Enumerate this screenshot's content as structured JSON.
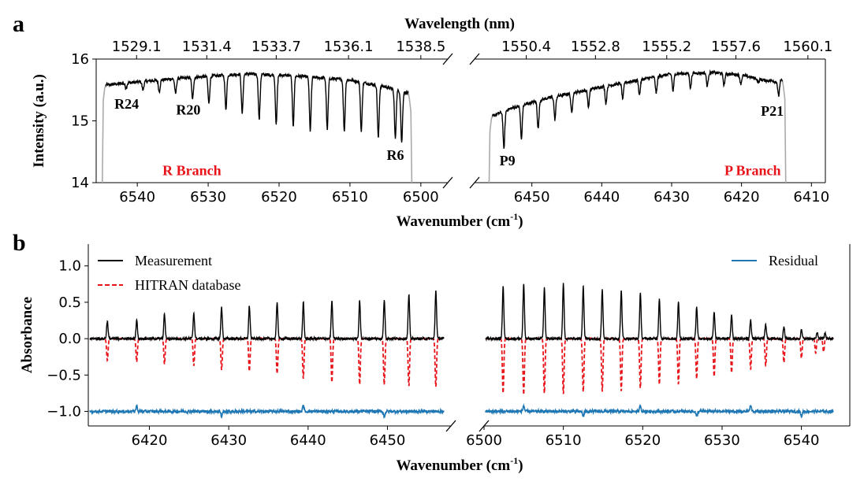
{
  "chart_data": [
    {
      "panel": "a",
      "type": "line",
      "xlabel": "Wavenumber (cm⁻¹)",
      "xlabel_main": "Wavenumber (cm",
      "xlabel_sup": "-1",
      "xlabel_tail": ")",
      "ylabel": "Intensity (a.u.)",
      "top_xlabel": "Wavelength (nm)",
      "ylim": [
        14,
        16
      ],
      "yticks": [
        "14",
        "15",
        "16"
      ],
      "broken_x_axis": true,
      "x_reversed": true,
      "segments": [
        {
          "xlim": [
            6545.8,
            6496.2
          ],
          "xticks": [
            6540,
            6530,
            6520,
            6510,
            6500
          ],
          "xtick_labels": [
            "6540",
            "6530",
            "6520",
            "6510",
            "6500"
          ],
          "top_ticks": [
            {
              "x": 6540.1,
              "label": "1529.1"
            },
            {
              "x": 6530.2,
              "label": "1531.4"
            },
            {
              "x": 6520.4,
              "label": "1533.7"
            },
            {
              "x": 6510.2,
              "label": "1536.1"
            },
            {
              "x": 6500.0,
              "label": "1538.5"
            }
          ],
          "edge_rise": 6544.8,
          "edge_fall": 6501.4,
          "baseline": [
            [
              6544.5,
              15.58
            ],
            [
              6535,
              15.68
            ],
            [
              6525,
              15.76
            ],
            [
              6518,
              15.73
            ],
            [
              6510,
              15.66
            ],
            [
              6505,
              15.55
            ],
            [
              6502,
              15.45
            ]
          ],
          "dips": [
            [
              6543.8,
              15.58
            ],
            [
              6541.6,
              15.53
            ],
            [
              6539.2,
              15.5
            ],
            [
              6536.9,
              15.47
            ],
            [
              6534.6,
              15.44
            ],
            [
              6532.2,
              15.35
            ],
            [
              6529.9,
              15.28
            ],
            [
              6527.5,
              15.19
            ],
            [
              6525.2,
              15.12
            ],
            [
              6522.8,
              15.02
            ],
            [
              6520.4,
              14.94
            ],
            [
              6518.0,
              14.92
            ],
            [
              6515.6,
              14.84
            ],
            [
              6513.2,
              14.86
            ],
            [
              6510.8,
              14.83
            ],
            [
              6508.4,
              14.83
            ],
            [
              6506.0,
              14.73
            ],
            [
              6503.6,
              14.72
            ],
            [
              6502.7,
              14.65
            ]
          ]
        },
        {
          "xlim": [
            6458.2,
            6408.0
          ],
          "xticks": [
            6450,
            6440,
            6430,
            6420,
            6410
          ],
          "xtick_labels": [
            "6450",
            "6440",
            "6430",
            "6420",
            "6410"
          ],
          "top_ticks": [
            {
              "x": 6450.8,
              "label": "1550.4"
            },
            {
              "x": 6440.9,
              "label": "1552.8"
            },
            {
              "x": 6430.7,
              "label": "1555.2"
            },
            {
              "x": 6420.8,
              "label": "1557.6"
            },
            {
              "x": 6410.5,
              "label": "1560.1"
            }
          ],
          "edge_rise": 6456.0,
          "edge_fall": 6413.8,
          "baseline": [
            [
              6455.6,
              15.08
            ],
            [
              6453,
              15.2
            ],
            [
              6448,
              15.36
            ],
            [
              6440,
              15.55
            ],
            [
              6430,
              15.76
            ],
            [
              6424,
              15.78
            ],
            [
              6420,
              15.74
            ],
            [
              6416.5,
              15.65
            ]
          ],
          "dips": [
            [
              6454.0,
              14.55
            ],
            [
              6451.5,
              14.7
            ],
            [
              6449.1,
              14.88
            ],
            [
              6446.7,
              15.02
            ],
            [
              6444.3,
              15.13
            ],
            [
              6441.9,
              15.22
            ],
            [
              6439.4,
              15.28
            ],
            [
              6437.0,
              15.36
            ],
            [
              6434.6,
              15.42
            ],
            [
              6432.2,
              15.45
            ],
            [
              6429.8,
              15.48
            ],
            [
              6427.3,
              15.53
            ],
            [
              6424.9,
              15.56
            ],
            [
              6422.5,
              15.58
            ],
            [
              6420.1,
              15.6
            ],
            [
              6417.6,
              15.62
            ],
            [
              6415.2,
              15.63
            ],
            [
              6414.7,
              15.4
            ]
          ]
        }
      ],
      "annotations": [
        {
          "text": "R24",
          "x": 6541.5,
          "y": 15.2
        },
        {
          "text": "R20",
          "x": 6532.8,
          "y": 15.1
        },
        {
          "text": "R6",
          "x": 6503.6,
          "y": 14.37
        },
        {
          "text": "P9",
          "x": 6453.5,
          "y": 14.28
        },
        {
          "text": "P21",
          "x": 6415.6,
          "y": 15.08
        }
      ],
      "branch_labels": [
        {
          "text": "R Branch",
          "x": 6532.3,
          "y": 14.12
        },
        {
          "text": "P Branch",
          "x": 6418.4,
          "y": 14.12
        }
      ]
    },
    {
      "panel": "b",
      "type": "line",
      "xlabel": "Wavenumber (cm⁻¹)",
      "xlabel_main": "Wavenumber (cm",
      "xlabel_sup": "-1",
      "xlabel_tail": ")",
      "ylabel": "Absorbance",
      "ylim": [
        -1.2,
        1.3
      ],
      "yticks": [
        1.0,
        0.5,
        0.0,
        -0.5,
        -1.0
      ],
      "ytick_labels": [
        "1.0",
        "0.5",
        "0.0",
        "−0.5",
        "−1.0"
      ],
      "broken_x_axis": true,
      "segments": [
        {
          "xlim": [
            6412.3,
            6458.0
          ],
          "xticks": [
            6420,
            6430,
            6440,
            6450
          ],
          "xtick_labels": [
            "6420",
            "6430",
            "6440",
            "6450"
          ],
          "measurement_peaks": [
            [
              6414.7,
              0.24
            ],
            [
              6418.4,
              0.26
            ],
            [
              6421.9,
              0.34
            ],
            [
              6425.6,
              0.35
            ],
            [
              6429.1,
              0.44
            ],
            [
              6432.6,
              0.45
            ],
            [
              6436.1,
              0.5
            ],
            [
              6439.4,
              0.5
            ],
            [
              6443.0,
              0.52
            ],
            [
              6446.5,
              0.52
            ],
            [
              6449.6,
              0.53
            ],
            [
              6452.7,
              0.6
            ],
            [
              6456.1,
              0.66
            ]
          ],
          "hitran_peaks": [
            [
              6414.7,
              -0.3
            ],
            [
              6418.4,
              -0.32
            ],
            [
              6421.9,
              -0.35
            ],
            [
              6425.6,
              -0.37
            ],
            [
              6429.1,
              -0.43
            ],
            [
              6432.6,
              -0.45
            ],
            [
              6436.1,
              -0.48
            ],
            [
              6439.4,
              -0.55
            ],
            [
              6443.0,
              -0.6
            ],
            [
              6446.5,
              -0.63
            ],
            [
              6449.6,
              -0.63
            ],
            [
              6452.7,
              -0.65
            ],
            [
              6456.1,
              -0.66
            ]
          ]
        },
        {
          "xlim": [
            6500.0,
            6546.1
          ],
          "xticks": [
            6500,
            6510,
            6520,
            6530,
            6540
          ],
          "xtick_labels": [
            "6500",
            "6510",
            "6520",
            "6530",
            "6540"
          ],
          "measurement_peaks": [
            [
              6502.4,
              0.72
            ],
            [
              6505.0,
              0.75
            ],
            [
              6507.6,
              0.7
            ],
            [
              6510.0,
              0.75
            ],
            [
              6512.5,
              0.72
            ],
            [
              6514.9,
              0.68
            ],
            [
              6517.3,
              0.66
            ],
            [
              6519.7,
              0.62
            ],
            [
              6522.1,
              0.55
            ],
            [
              6524.5,
              0.5
            ],
            [
              6526.8,
              0.44
            ],
            [
              6529.0,
              0.36
            ],
            [
              6531.2,
              0.33
            ],
            [
              6533.6,
              0.26
            ],
            [
              6535.5,
              0.2
            ],
            [
              6537.8,
              0.16
            ],
            [
              6540.0,
              0.12
            ],
            [
              6542.0,
              0.08
            ],
            [
              6543.0,
              0.08
            ]
          ],
          "hitran_peaks": [
            [
              6502.4,
              -0.75
            ],
            [
              6505.0,
              -0.77
            ],
            [
              6507.6,
              -0.75
            ],
            [
              6510.0,
              -0.76
            ],
            [
              6512.5,
              -0.73
            ],
            [
              6514.9,
              -0.72
            ],
            [
              6517.3,
              -0.72
            ],
            [
              6519.7,
              -0.68
            ],
            [
              6522.1,
              -0.63
            ],
            [
              6524.5,
              -0.62
            ],
            [
              6526.8,
              -0.55
            ],
            [
              6529.0,
              -0.52
            ],
            [
              6531.2,
              -0.47
            ],
            [
              6533.6,
              -0.42
            ],
            [
              6535.5,
              -0.37
            ],
            [
              6537.8,
              -0.33
            ],
            [
              6540.0,
              -0.27
            ],
            [
              6541.8,
              -0.2
            ],
            [
              6542.8,
              -0.18
            ]
          ]
        }
      ],
      "residual_offset": -1.0,
      "series": [
        {
          "name": "Measurement",
          "color": "#000000",
          "style": "solid"
        },
        {
          "name": "HITRAN database",
          "color": "#e8141a",
          "style": "dashed"
        },
        {
          "name": "Residual",
          "color": "#1f77b4",
          "style": "solid"
        }
      ]
    }
  ]
}
